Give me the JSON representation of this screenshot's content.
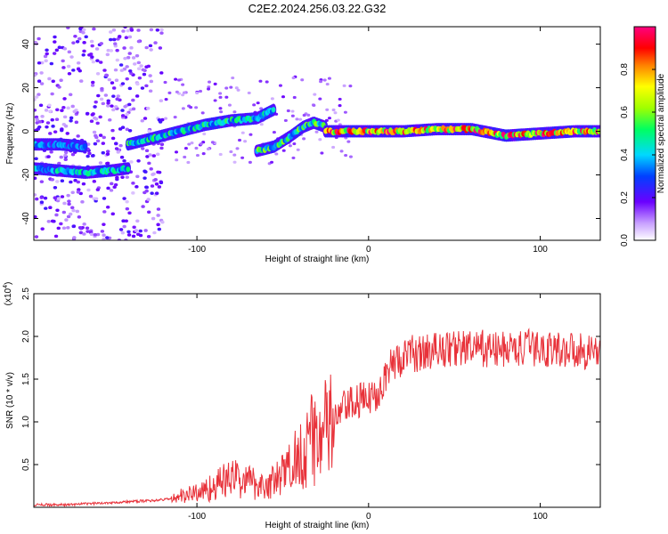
{
  "figure": {
    "title": "C2E2.2024.256.03.22.G32"
  },
  "chart_data": [
    {
      "type": "heatmap",
      "xlabel": "Height of straight line (km)",
      "ylabel": "Frequency (Hz)",
      "xlim": [
        -195,
        135
      ],
      "ylim": [
        -50,
        48
      ],
      "xticks": [
        -100,
        0,
        100
      ],
      "yticks": [
        -40,
        -20,
        0,
        20,
        40
      ],
      "grid": false,
      "colorbar": {
        "label": "Normalized spectral amplitude",
        "range": [
          0,
          1
        ],
        "ticks": [
          0.0,
          0.2,
          0.4,
          0.6,
          0.8
        ],
        "colormap": "white-purple-blue-cyan-green-yellow-orange-red-magenta"
      },
      "traces": [
        {
          "x": [
            -195,
            -180,
            -165,
            -150,
            -140
          ],
          "y": [
            -17,
            -18,
            -19,
            -18,
            -17
          ],
          "amplitude": 0.45
        },
        {
          "x": [
            -195,
            -180,
            -165
          ],
          "y": [
            -6,
            -6,
            -7
          ],
          "amplitude": 0.35
        },
        {
          "x": [
            -140,
            -125,
            -110,
            -95,
            -80,
            -65,
            -55
          ],
          "y": [
            -6,
            -3,
            0,
            3,
            5,
            6,
            10
          ],
          "amplitude": 0.5
        },
        {
          "x": [
            -65,
            -55,
            -45,
            -38,
            -32,
            -25
          ],
          "y": [
            -9,
            -7,
            -2,
            2,
            4,
            2
          ],
          "amplitude": 0.55
        },
        {
          "x": [
            -25,
            -10,
            0,
            20,
            40,
            60,
            80,
            100,
            120,
            135
          ],
          "y": [
            0,
            0,
            0,
            0,
            1,
            1,
            -2,
            -1,
            0,
            0
          ],
          "amplitude": 0.9
        }
      ]
    },
    {
      "type": "line",
      "xlabel": "Height of straight line (km)",
      "ylabel": "SNR (10 * v/v)",
      "yscale_label": "(x10",
      "yscale_exponent": "4",
      "yscale_close": ")",
      "xlim": [
        -195,
        135
      ],
      "ylim": [
        0,
        2.5
      ],
      "xticks": [
        -100,
        0,
        100
      ],
      "yticks": [
        0.5,
        1.0,
        1.5,
        2.0,
        2.5
      ],
      "grid": false,
      "series": [
        {
          "color": "#e8323a",
          "x": [
            -195,
            -185,
            -175,
            -165,
            -155,
            -145,
            -135,
            -125,
            -115,
            -105,
            -95,
            -90,
            -85,
            -80,
            -75,
            -70,
            -65,
            -60,
            -55,
            -50,
            -45,
            -40,
            -35,
            -30,
            -25,
            -20,
            -15,
            -10,
            -5,
            0,
            5,
            10,
            15,
            20,
            25,
            30,
            35,
            40,
            45,
            50,
            55,
            60,
            65,
            70,
            75,
            80,
            85,
            90,
            95,
            100,
            105,
            110,
            115,
            120,
            125,
            130,
            135
          ],
          "y": [
            0.03,
            0.03,
            0.03,
            0.04,
            0.05,
            0.06,
            0.07,
            0.08,
            0.1,
            0.15,
            0.2,
            0.25,
            0.3,
            0.35,
            0.32,
            0.3,
            0.28,
            0.25,
            0.3,
            0.38,
            0.5,
            0.65,
            0.75,
            0.85,
            0.9,
            1.0,
            1.15,
            1.2,
            1.25,
            1.25,
            1.35,
            1.55,
            1.7,
            1.75,
            1.8,
            1.8,
            1.82,
            1.85,
            1.85,
            1.86,
            1.87,
            1.85,
            1.86,
            1.85,
            1.84,
            1.85,
            1.86,
            1.85,
            1.87,
            1.85,
            1.86,
            1.84,
            1.85,
            1.85,
            1.83,
            1.84,
            1.83
          ]
        }
      ]
    }
  ]
}
